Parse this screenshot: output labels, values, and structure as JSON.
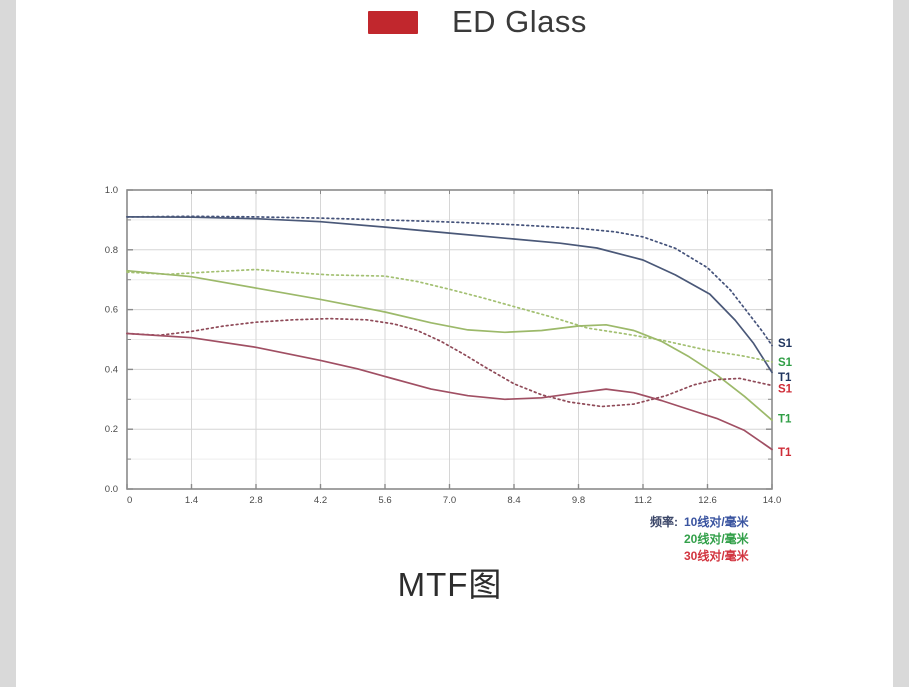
{
  "page": {
    "background": "#ffffff",
    "edge_strip_color": "#d9d9d9"
  },
  "top_legend": {
    "label": "ED Glass",
    "swatch_color": "#c1272d"
  },
  "bottom_title": "MTF图",
  "chart_data": {
    "type": "line",
    "title": "MTF图",
    "xlabel": "",
    "ylabel": "",
    "xlim": [
      0,
      14
    ],
    "ylim": [
      0.0,
      1.0
    ],
    "grid": true,
    "legend_position": "bottom-right",
    "x_ticks": [
      "0",
      "1.4",
      "2.8",
      "4.2",
      "5.6",
      "7.0",
      "8.4",
      "9.8",
      "11.2",
      "12.6",
      "14.0"
    ],
    "y_ticks": [
      "0.0",
      "0.2",
      "0.4",
      "0.6",
      "0.8",
      "1.0"
    ],
    "axis_color": "#8a8a8a",
    "tick_label_color": "#4a4a4a",
    "grid_major_color": "#d6d6d6",
    "grid_minor_color": "#ededed",
    "frequency_legend": {
      "prefix": "频率:",
      "prefix_color": "#3b4668",
      "items": [
        {
          "label": "10线对/毫米",
          "color": "#3a54a0"
        },
        {
          "label": "20线对/毫米",
          "color": "#33a04a"
        },
        {
          "label": "30线对/毫米",
          "color": "#d23540"
        }
      ]
    },
    "curve_end_labels": [
      {
        "text": "S1",
        "color": "#20355f",
        "value": 0.488
      },
      {
        "text": "S1",
        "color": "#2f9e45",
        "value": 0.425
      },
      {
        "text": "T1",
        "color": "#20355f",
        "value": 0.374
      },
      {
        "text": "S1",
        "color": "#cf2d38",
        "value": 0.336
      },
      {
        "text": "T1",
        "color": "#2f9e45",
        "value": 0.235
      },
      {
        "text": "T1",
        "color": "#cf2d38",
        "value": 0.124
      }
    ],
    "series": [
      {
        "name": "10线对/毫米 S (sagittal)",
        "id": "s10",
        "style": "dotted",
        "color": "#44527a",
        "points": [
          [
            0,
            0.91
          ],
          [
            1.4,
            0.912
          ],
          [
            2.8,
            0.91
          ],
          [
            4.2,
            0.906
          ],
          [
            5.6,
            0.9
          ],
          [
            7.0,
            0.893
          ],
          [
            8.4,
            0.884
          ],
          [
            9.8,
            0.872
          ],
          [
            10.6,
            0.86
          ],
          [
            11.2,
            0.843
          ],
          [
            11.9,
            0.805
          ],
          [
            12.6,
            0.74
          ],
          [
            13.1,
            0.665
          ],
          [
            13.5,
            0.585
          ],
          [
            13.8,
            0.525
          ],
          [
            14,
            0.48
          ]
        ]
      },
      {
        "name": "10线对/毫米 T (tangential)",
        "id": "t10",
        "style": "solid",
        "color": "#4a5878",
        "points": [
          [
            0,
            0.91
          ],
          [
            1.4,
            0.909
          ],
          [
            2.8,
            0.904
          ],
          [
            4.2,
            0.894
          ],
          [
            5.6,
            0.876
          ],
          [
            7.0,
            0.856
          ],
          [
            8.4,
            0.836
          ],
          [
            9.4,
            0.822
          ],
          [
            10.2,
            0.806
          ],
          [
            11.2,
            0.766
          ],
          [
            11.9,
            0.716
          ],
          [
            12.65,
            0.652
          ],
          [
            13.2,
            0.565
          ],
          [
            13.6,
            0.487
          ],
          [
            14,
            0.39
          ]
        ]
      },
      {
        "name": "20线对/毫米 S (sagittal)",
        "id": "s20",
        "style": "dotted",
        "color": "#a3c072",
        "points": [
          [
            0,
            0.725
          ],
          [
            0.9,
            0.718
          ],
          [
            1.8,
            0.726
          ],
          [
            2.8,
            0.734
          ],
          [
            3.6,
            0.724
          ],
          [
            4.4,
            0.716
          ],
          [
            5.6,
            0.712
          ],
          [
            6.3,
            0.694
          ],
          [
            7.0,
            0.668
          ],
          [
            7.7,
            0.64
          ],
          [
            8.4,
            0.61
          ],
          [
            9.2,
            0.576
          ],
          [
            10.0,
            0.538
          ],
          [
            10.8,
            0.519
          ],
          [
            11.6,
            0.498
          ],
          [
            12.6,
            0.464
          ],
          [
            13.4,
            0.444
          ],
          [
            14,
            0.425
          ]
        ]
      },
      {
        "name": "20线对/毫米 T (tangential)",
        "id": "t20",
        "style": "solid",
        "color": "#9cb96a",
        "points": [
          [
            0,
            0.73
          ],
          [
            1.4,
            0.71
          ],
          [
            2.8,
            0.672
          ],
          [
            4.2,
            0.634
          ],
          [
            5.6,
            0.592
          ],
          [
            6.6,
            0.556
          ],
          [
            7.4,
            0.532
          ],
          [
            8.2,
            0.524
          ],
          [
            9.0,
            0.53
          ],
          [
            9.8,
            0.545
          ],
          [
            10.4,
            0.549
          ],
          [
            11.0,
            0.53
          ],
          [
            11.6,
            0.494
          ],
          [
            12.2,
            0.442
          ],
          [
            12.8,
            0.382
          ],
          [
            13.4,
            0.31
          ],
          [
            14,
            0.23
          ]
        ]
      },
      {
        "name": "30线对/毫米 S (sagittal)",
        "id": "s30",
        "style": "dotted",
        "color": "#8f4a58",
        "points": [
          [
            0,
            0.52
          ],
          [
            0.7,
            0.514
          ],
          [
            1.4,
            0.527
          ],
          [
            2.1,
            0.545
          ],
          [
            2.8,
            0.558
          ],
          [
            3.6,
            0.566
          ],
          [
            4.4,
            0.57
          ],
          [
            5.2,
            0.566
          ],
          [
            5.8,
            0.552
          ],
          [
            6.3,
            0.53
          ],
          [
            6.8,
            0.495
          ],
          [
            7.3,
            0.452
          ],
          [
            7.8,
            0.405
          ],
          [
            8.4,
            0.352
          ],
          [
            9.0,
            0.315
          ],
          [
            9.6,
            0.291
          ],
          [
            10.3,
            0.276
          ],
          [
            11.0,
            0.284
          ],
          [
            11.7,
            0.312
          ],
          [
            12.3,
            0.348
          ],
          [
            12.8,
            0.366
          ],
          [
            13.3,
            0.37
          ],
          [
            14,
            0.346
          ]
        ]
      },
      {
        "name": "30线对/毫米 T (tangential)",
        "id": "t30",
        "style": "solid",
        "color": "#a04f63",
        "points": [
          [
            0,
            0.52
          ],
          [
            1.4,
            0.506
          ],
          [
            2.8,
            0.474
          ],
          [
            4.2,
            0.43
          ],
          [
            5.0,
            0.402
          ],
          [
            5.8,
            0.368
          ],
          [
            6.6,
            0.334
          ],
          [
            7.4,
            0.312
          ],
          [
            8.2,
            0.3
          ],
          [
            9.0,
            0.305
          ],
          [
            9.8,
            0.322
          ],
          [
            10.4,
            0.334
          ],
          [
            11.0,
            0.322
          ],
          [
            11.6,
            0.296
          ],
          [
            12.2,
            0.266
          ],
          [
            12.8,
            0.236
          ],
          [
            13.4,
            0.196
          ],
          [
            14,
            0.132
          ]
        ]
      }
    ]
  }
}
